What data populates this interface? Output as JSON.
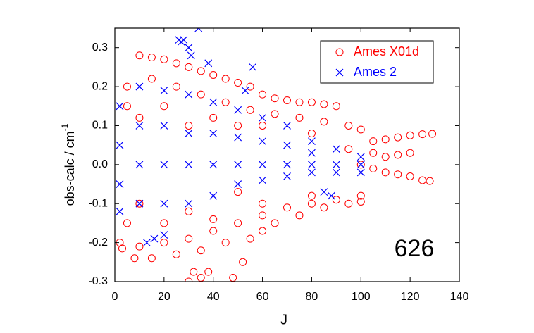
{
  "chart_data": {
    "type": "scatter",
    "xlabel": "J",
    "ylabel": "obs-calc / cm",
    "ylabel_sup": "-1",
    "annotation": "626",
    "xlim": [
      0,
      140
    ],
    "ylim": [
      -0.3,
      0.35
    ],
    "xticks": [
      0,
      20,
      40,
      60,
      80,
      100,
      120,
      140
    ],
    "yticks": [
      -0.3,
      -0.2,
      -0.1,
      {
        "value": 0,
        "label": "0.0"
      },
      0.1,
      0.2,
      0.3
    ],
    "legend": "upper right",
    "series": [
      {
        "name": "Ames X01d",
        "color": "#ff0000",
        "marker": "circle",
        "x": [
          10,
          15,
          20,
          25,
          30,
          35,
          40,
          45,
          50,
          55,
          60,
          65,
          70,
          75,
          80,
          85,
          90,
          5,
          15,
          25,
          35,
          45,
          55,
          65,
          75,
          85,
          95,
          100,
          105,
          110,
          115,
          120,
          125,
          129,
          95,
          105,
          110,
          115,
          120,
          100,
          105,
          110,
          115,
          120,
          125,
          128,
          2,
          10,
          20,
          30,
          40,
          50,
          60,
          70,
          80,
          90,
          100,
          3,
          8,
          15,
          25,
          35,
          45,
          55,
          60,
          65,
          75,
          85,
          95,
          100,
          30,
          35,
          38,
          48,
          52,
          32,
          5,
          5,
          20,
          20,
          40,
          40,
          60,
          60,
          80,
          80,
          10,
          10,
          30,
          30,
          50,
          50
        ],
        "y": [
          0.28,
          0.275,
          0.27,
          0.26,
          0.25,
          0.24,
          0.23,
          0.22,
          0.21,
          0.2,
          0.18,
          0.17,
          0.165,
          0.16,
          0.16,
          0.155,
          0.15,
          0.2,
          0.22,
          0.2,
          0.18,
          0.16,
          0.14,
          0.13,
          0.12,
          0.11,
          0.1,
          0.09,
          0.06,
          0.065,
          0.07,
          0.075,
          0.078,
          0.079,
          0.04,
          0.03,
          0.02,
          0.025,
          0.03,
          0.0,
          -0.01,
          -0.02,
          -0.025,
          -0.03,
          -0.04,
          -0.042,
          -0.2,
          -0.21,
          -0.2,
          -0.19,
          -0.17,
          -0.15,
          -0.13,
          -0.11,
          -0.1,
          -0.09,
          -0.08,
          -0.215,
          -0.24,
          -0.24,
          -0.23,
          -0.22,
          -0.2,
          -0.19,
          -0.17,
          -0.15,
          -0.13,
          -0.11,
          -0.1,
          -0.095,
          -0.3,
          -0.29,
          -0.275,
          -0.29,
          -0.25,
          -0.275,
          0.15,
          -0.15,
          0.15,
          -0.15,
          0.12,
          -0.14,
          0.1,
          -0.1,
          0.08,
          -0.08,
          0.12,
          -0.1,
          0.1,
          -0.12,
          0.1,
          -0.07
        ]
      },
      {
        "name": "Ames 2",
        "color": "#0000ff",
        "marker": "x",
        "x": [
          2,
          2,
          2,
          2,
          10,
          10,
          10,
          10,
          20,
          20,
          20,
          20,
          30,
          30,
          30,
          30,
          40,
          40,
          40,
          40,
          50,
          50,
          50,
          50,
          60,
          60,
          60,
          60,
          70,
          70,
          70,
          70,
          80,
          80,
          80,
          80,
          90,
          90,
          90,
          100,
          100,
          100,
          26,
          27,
          28,
          30,
          31,
          34,
          38,
          56,
          53,
          13,
          16,
          20,
          85,
          88
        ],
        "y": [
          0.15,
          0.05,
          -0.05,
          -0.12,
          0.2,
          0.1,
          0.0,
          -0.1,
          0.19,
          0.1,
          0.0,
          -0.1,
          0.18,
          0.08,
          0.0,
          -0.1,
          0.16,
          0.08,
          0.0,
          -0.08,
          0.14,
          0.07,
          0.0,
          -0.05,
          0.12,
          0.06,
          0.0,
          -0.04,
          0.1,
          0.05,
          0.0,
          -0.03,
          0.06,
          0.03,
          0.0,
          -0.02,
          0.04,
          0.0,
          -0.02,
          0.02,
          0.0,
          -0.02,
          0.32,
          0.315,
          0.32,
          0.3,
          0.28,
          0.35,
          0.26,
          0.25,
          0.19,
          -0.2,
          -0.19,
          -0.18,
          -0.07,
          -0.08
        ]
      }
    ]
  }
}
